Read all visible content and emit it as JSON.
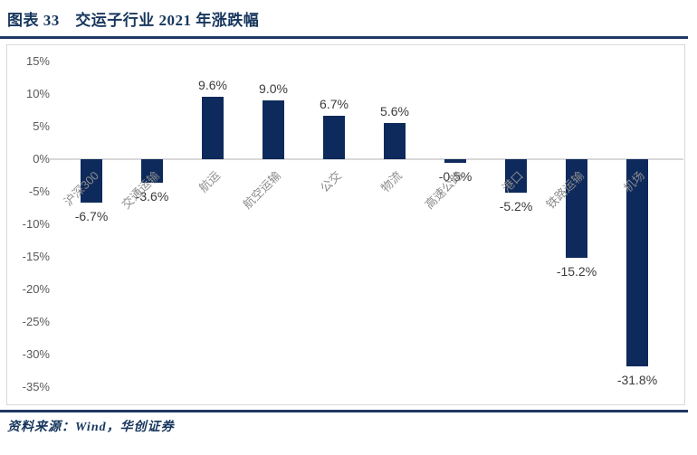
{
  "header": {
    "title": "图表 33　交运子行业 2021 年涨跌幅"
  },
  "footer": {
    "source": "资料来源：Wind，华创证券"
  },
  "colors": {
    "bar": "#0E2A5C",
    "rule": "#1F3864",
    "title_text": "#17365D",
    "axis_label": "#595959",
    "category_label": "#8C8C8C",
    "data_label": "#3B3B3B",
    "plot_border": "#D9D9D9",
    "zero_line": "#D9D9D9",
    "background": "#FFFFFF"
  },
  "chart_data": {
    "type": "bar",
    "title": "交运子行业2021年涨跌幅",
    "categories": [
      "沪深300",
      "交通运输",
      "航运",
      "航空运输",
      "公交",
      "物流",
      "高速公路",
      "港口",
      "铁路运输",
      "机场"
    ],
    "values": [
      -6.7,
      -3.6,
      9.6,
      9.0,
      6.7,
      5.6,
      -0.5,
      -5.2,
      -15.2,
      -31.8
    ],
    "data_labels": [
      "-6.7%",
      "-3.6%",
      "9.6%",
      "9.0%",
      "6.7%",
      "5.6%",
      "-0.5%",
      "-5.2%",
      "-15.2%",
      "-31.8%"
    ],
    "y_ticks": [
      15,
      10,
      5,
      0,
      -5,
      -10,
      -15,
      -20,
      -25,
      -30,
      -35
    ],
    "y_tick_labels": [
      "15%",
      "10%",
      "5%",
      "0%",
      "-5%",
      "-10%",
      "-15%",
      "-20%",
      "-25%",
      "-30%",
      "-35%"
    ],
    "ylim": [
      -35,
      15
    ],
    "xlabel": "",
    "ylabel": "",
    "legend": "none",
    "gridlines": "zero-axis-only",
    "data_label_position": "outside-end",
    "category_label_rotation_deg": 45
  }
}
